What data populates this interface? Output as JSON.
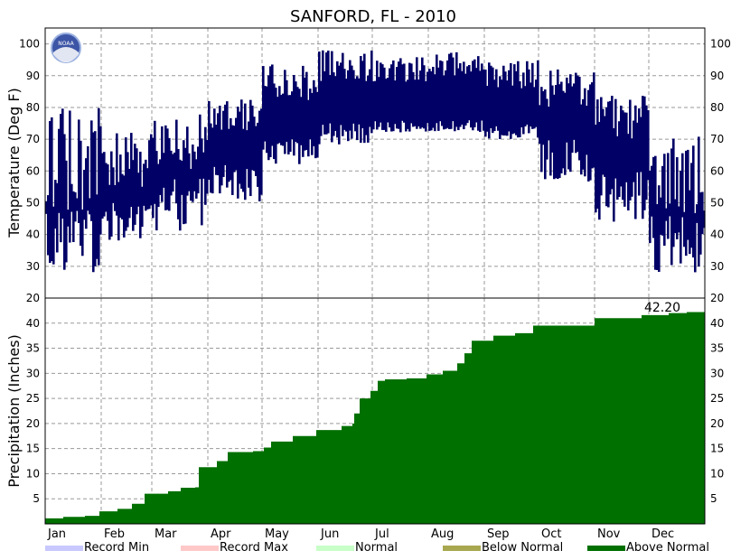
{
  "chart_data": {
    "type": "composite",
    "title": "SANFORD, FL - 2010",
    "months": [
      "Jan",
      "Feb",
      "Mar",
      "Apr",
      "May",
      "Jun",
      "Jul",
      "Aug",
      "Sep",
      "Oct",
      "Nov",
      "Dec"
    ],
    "temperature": {
      "type": "bar-range",
      "ylabel": "Temperature (Deg F)",
      "ylim": [
        20,
        105
      ],
      "yticks": [
        30,
        40,
        50,
        60,
        70,
        80,
        90,
        100
      ],
      "grid": true,
      "color": "#000066",
      "monthly_envelope": [
        {
          "month": "Jan",
          "low": [
            28,
            48
          ],
          "high": [
            45,
            80
          ]
        },
        {
          "month": "Feb",
          "low": [
            38,
            50
          ],
          "high": [
            55,
            72
          ]
        },
        {
          "month": "Mar",
          "low": [
            40,
            58
          ],
          "high": [
            60,
            78
          ]
        },
        {
          "month": "Apr",
          "low": [
            50,
            62
          ],
          "high": [
            72,
            84
          ]
        },
        {
          "month": "May",
          "low": [
            62,
            70
          ],
          "high": [
            82,
            94
          ]
        },
        {
          "month": "Jun",
          "low": [
            68,
            75
          ],
          "high": [
            88,
            98
          ]
        },
        {
          "month": "Jul",
          "low": [
            72,
            76
          ],
          "high": [
            88,
            96
          ]
        },
        {
          "month": "Aug",
          "low": [
            72,
            76
          ],
          "high": [
            90,
            98
          ]
        },
        {
          "month": "Sep",
          "low": [
            70,
            75
          ],
          "high": [
            86,
            95
          ]
        },
        {
          "month": "Oct",
          "low": [
            56,
            70
          ],
          "high": [
            80,
            92
          ]
        },
        {
          "month": "Nov",
          "low": [
            44,
            60
          ],
          "high": [
            70,
            84
          ]
        },
        {
          "month": "Dec",
          "low": [
            28,
            46
          ],
          "high": [
            45,
            72
          ]
        }
      ]
    },
    "precipitation": {
      "type": "area",
      "ylabel": "Precipitation (Inches)",
      "ylim": [
        0,
        45
      ],
      "yticks": [
        5,
        10,
        15,
        20,
        25,
        30,
        35,
        40
      ],
      "grid": true,
      "color": "#007000",
      "total_label": "42.20",
      "cumulative_steps": [
        {
          "day": 1,
          "value": 1.1
        },
        {
          "day": 10,
          "value": 1.4
        },
        {
          "day": 22,
          "value": 1.6
        },
        {
          "day": 30,
          "value": 2.5
        },
        {
          "day": 40,
          "value": 3.0
        },
        {
          "day": 48,
          "value": 4.0
        },
        {
          "day": 55,
          "value": 6.0
        },
        {
          "day": 68,
          "value": 6.5
        },
        {
          "day": 75,
          "value": 7.2
        },
        {
          "day": 83,
          "value": 7.3
        },
        {
          "day": 85,
          "value": 11.3
        },
        {
          "day": 95,
          "value": 12.5
        },
        {
          "day": 101,
          "value": 14.3
        },
        {
          "day": 115,
          "value": 14.5
        },
        {
          "day": 121,
          "value": 15.2
        },
        {
          "day": 125,
          "value": 16.4
        },
        {
          "day": 137,
          "value": 17.5
        },
        {
          "day": 150,
          "value": 18.7
        },
        {
          "day": 164,
          "value": 19.5
        },
        {
          "day": 170,
          "value": 20.0
        },
        {
          "day": 171,
          "value": 22.0
        },
        {
          "day": 174,
          "value": 25.0
        },
        {
          "day": 180,
          "value": 26.5
        },
        {
          "day": 184,
          "value": 28.5
        },
        {
          "day": 188,
          "value": 28.8
        },
        {
          "day": 200,
          "value": 29.0
        },
        {
          "day": 211,
          "value": 29.8
        },
        {
          "day": 220,
          "value": 30.5
        },
        {
          "day": 228,
          "value": 32.0
        },
        {
          "day": 232,
          "value": 34.0
        },
        {
          "day": 236,
          "value": 36.5
        },
        {
          "day": 248,
          "value": 37.5
        },
        {
          "day": 260,
          "value": 38.0
        },
        {
          "day": 270,
          "value": 39.5
        },
        {
          "day": 304,
          "value": 41.0
        },
        {
          "day": 330,
          "value": 41.6
        },
        {
          "day": 345,
          "value": 42.0
        },
        {
          "day": 355,
          "value": 42.2
        }
      ]
    },
    "legend": [
      {
        "label": "Record Min",
        "color": "#c8c8ff"
      },
      {
        "label": "Record Max",
        "color": "#ffc8c8"
      },
      {
        "label": "Normal",
        "color": "#c8ffc8"
      },
      {
        "label": "Below Normal",
        "color": "#a8a850"
      },
      {
        "label": "Above Normal",
        "color": "#007000"
      }
    ],
    "noaa_logo": "NOAA"
  }
}
